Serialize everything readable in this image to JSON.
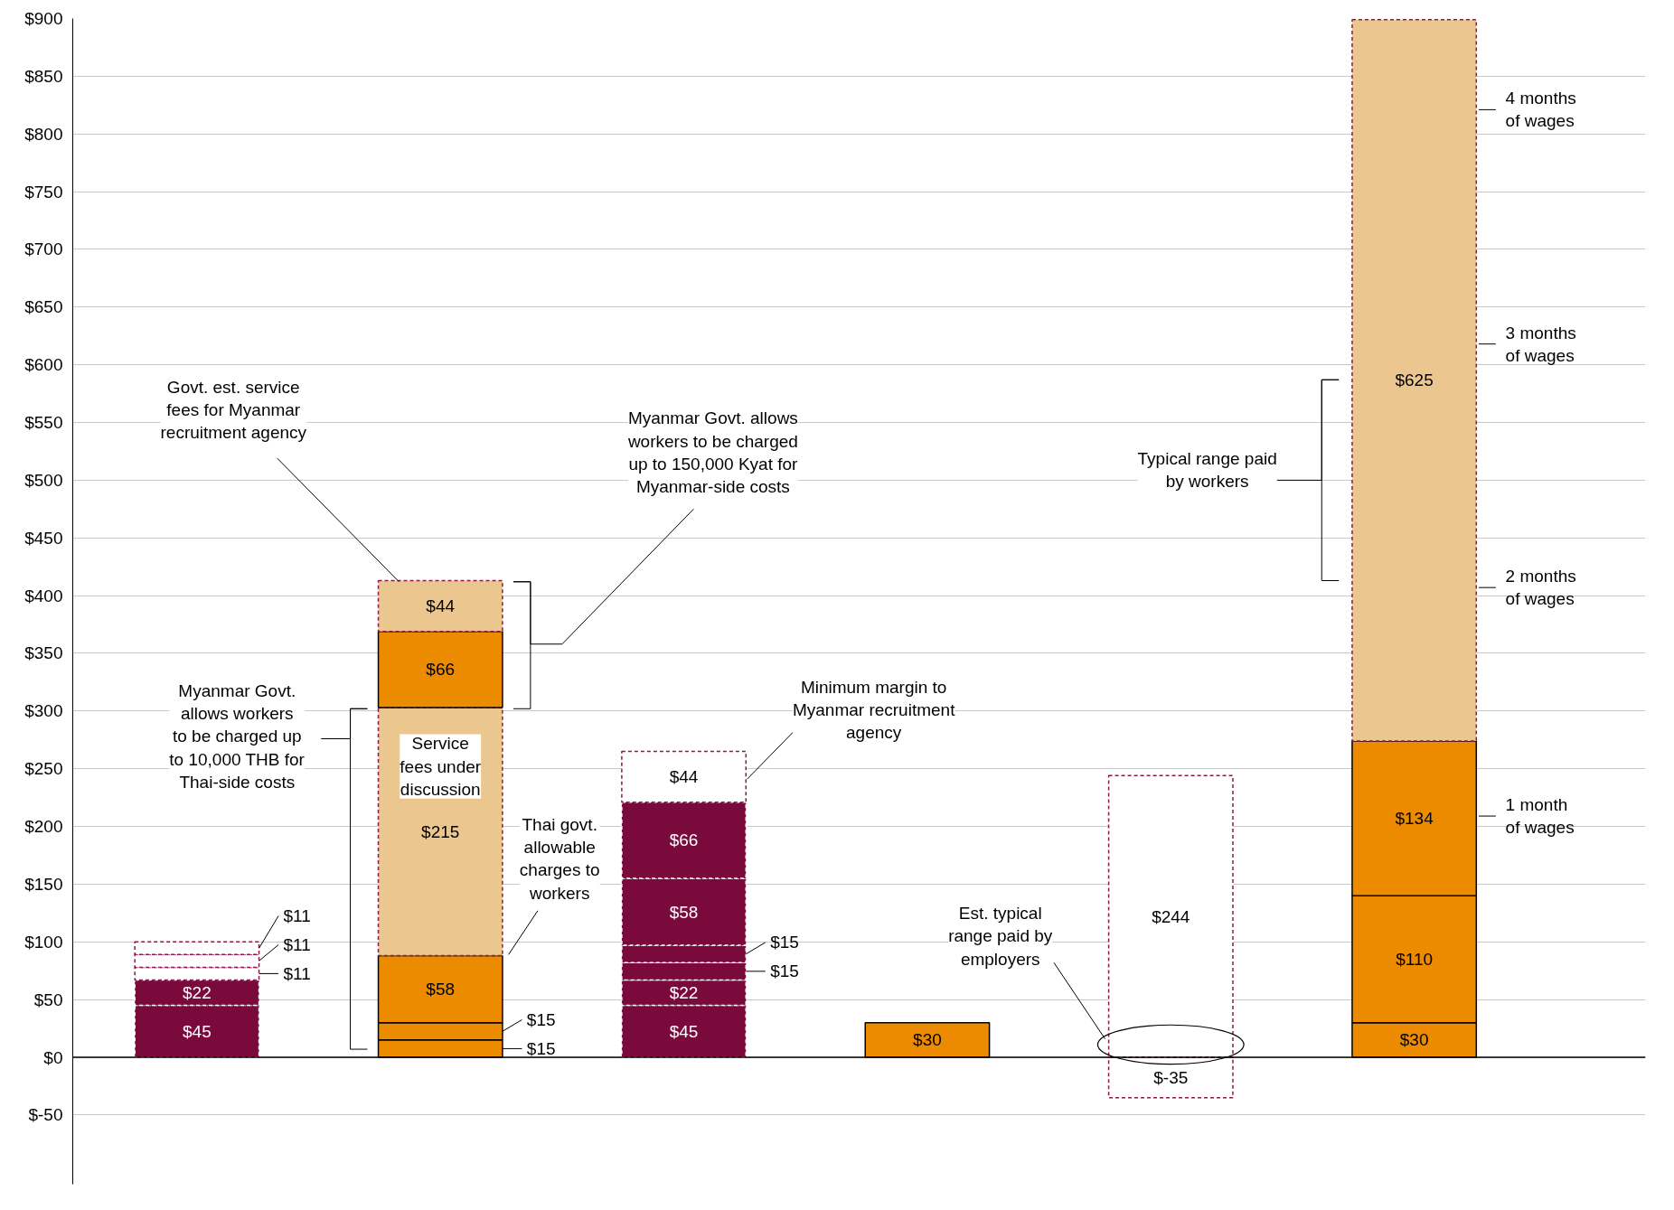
{
  "chart_data": {
    "type": "bar",
    "stacked": true,
    "categories": [
      null,
      null,
      null,
      null,
      null,
      null
    ],
    "series": [
      {
        "values": [
          45,
          15,
          45,
          30,
          -35,
          30
        ],
        "colors": [
          "#7a0a3c",
          "#ec8a00",
          "#7a0a3c",
          "#ec8a00",
          "#ffffff",
          "#ec8a00"
        ],
        "line_style": [
          "dashed",
          "solid",
          "dashed",
          "solid",
          "dashed",
          "solid"
        ],
        "value_labels": [
          "$45",
          "$15",
          "$45",
          "$30",
          "$-35",
          "$30"
        ]
      },
      {
        "values": [
          22,
          15,
          22,
          null,
          244,
          110
        ],
        "colors": [
          "#7a0a3c",
          "#ec8a00",
          "#7a0a3c",
          null,
          "#ffffff",
          "#ec8a00"
        ],
        "line_style": [
          "dashed",
          "solid",
          "dashed",
          null,
          "dashed",
          "solid"
        ],
        "value_labels": [
          "$22",
          "$15",
          "$22",
          null,
          "$244",
          "$110"
        ]
      },
      {
        "values": [
          11,
          58,
          15,
          null,
          null,
          134
        ],
        "colors": [
          "#ffffff",
          "#ec8a00",
          "#7a0a3c",
          null,
          null,
          "#ec8a00"
        ],
        "line_style": [
          "dashed",
          "solid",
          "dashed",
          null,
          null,
          "solid"
        ],
        "value_labels": [
          "$11",
          "$58",
          "$15",
          null,
          null,
          "$134"
        ]
      },
      {
        "values": [
          11,
          215,
          15,
          null,
          null,
          625
        ],
        "colors": [
          "#ffffff",
          "#ecc68f",
          "#7a0a3c",
          null,
          null,
          "#ecc68f"
        ],
        "line_style": [
          "dashed",
          "dashed",
          "dashed",
          null,
          null,
          "dashed"
        ],
        "value_labels": [
          "$11",
          "$215",
          "$15",
          null,
          null,
          "$625"
        ]
      },
      {
        "values": [
          11,
          66,
          58,
          null,
          null,
          null
        ],
        "colors": [
          "#ffffff",
          "#ec8a00",
          "#7a0a3c",
          null,
          null,
          null
        ],
        "line_style": [
          "dashed",
          "solid",
          "dashed",
          null,
          null,
          null
        ],
        "value_labels": [
          "$11",
          "$66",
          "$58",
          null,
          null,
          null
        ]
      },
      {
        "values": [
          null,
          44,
          66,
          null,
          null,
          null
        ],
        "colors": [
          null,
          "#ecc68f",
          "#7a0a3c",
          null,
          null,
          null
        ],
        "line_style": [
          null,
          "dashed",
          "dashed",
          null,
          null,
          null
        ],
        "value_labels": [
          null,
          "$44",
          "$66",
          null,
          null,
          null
        ]
      },
      {
        "values": [
          null,
          null,
          44,
          null,
          null,
          null
        ],
        "colors": [
          null,
          null,
          "#ffffff",
          null,
          null,
          null
        ],
        "line_style": [
          null,
          null,
          "dashed",
          null,
          null,
          null
        ],
        "value_labels": [
          null,
          null,
          "$44",
          null,
          null,
          null
        ]
      }
    ],
    "ylim": [
      -110,
      900
    ],
    "yticks": [
      {
        "value": -50,
        "label": "$-50"
      },
      {
        "value": 0,
        "label": "$0"
      },
      {
        "value": 50,
        "label": "$50"
      },
      {
        "value": 100,
        "label": "$100"
      },
      {
        "value": 150,
        "label": "$150"
      },
      {
        "value": 200,
        "label": "$200"
      },
      {
        "value": 250,
        "label": "$250"
      },
      {
        "value": 300,
        "label": "$300"
      },
      {
        "value": 350,
        "label": "$350"
      },
      {
        "value": 400,
        "label": "$400"
      },
      {
        "value": 450,
        "label": "$450"
      },
      {
        "value": 500,
        "label": "$500"
      },
      {
        "value": 550,
        "label": "$550"
      },
      {
        "value": 600,
        "label": "$600"
      },
      {
        "value": 650,
        "label": "$650"
      },
      {
        "value": 700,
        "label": "$700"
      },
      {
        "value": 750,
        "label": "$750"
      },
      {
        "value": 800,
        "label": "$800"
      },
      {
        "value": 850,
        "label": "$850"
      },
      {
        "value": 900,
        "label": "$900"
      }
    ],
    "grid": "y",
    "tick_labels": "y",
    "ref_lines": [
      {
        "axis": "y",
        "value": 0,
        "color": "#000000"
      }
    ],
    "annotations": [
      "Govt. est. service\nfees for Myanmar\nrecruitment agency",
      "Myanmar Govt. allows\nworkers to be charged\nup to 150,000 Kyat for\nMyanmar-side costs",
      "Myanmar Govt.\nallows workers\nto be charged up\nto 10,000 THB for\nThai-side costs",
      "Thai govt.\nallowable\ncharges to\nworkers",
      "Minimum margin to\nMyanmar recruitment\nagency",
      "Est. typical\nrange paid by\nemployers",
      "Typical range paid\nby workers",
      "Service\nfees under\ndiscussion",
      "4 months\nof wages",
      "3 months\nof wages",
      "2 months\nof wages",
      "1 month\nof wages"
    ]
  }
}
